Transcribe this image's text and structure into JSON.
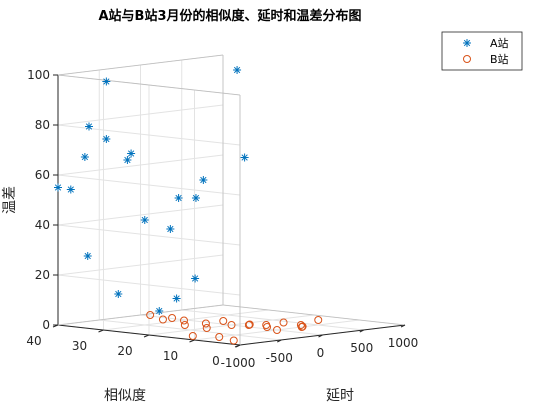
{
  "chart_data": {
    "type": "scatter3d",
    "title": "A站与B站3月份的相似度、延时和温差分布图",
    "xlabel": "延时",
    "ylabel": "相似度",
    "zlabel": "温差",
    "xlim": [
      -1000,
      1000
    ],
    "ylim": [
      0,
      40
    ],
    "zlim": [
      0,
      100
    ],
    "xticks": [
      "-1000",
      "-500",
      "0",
      "500",
      "1000"
    ],
    "yticks": [
      "0",
      "10",
      "20",
      "30",
      "40"
    ],
    "zticks": [
      "0",
      "20",
      "40",
      "60",
      "80",
      "100"
    ],
    "grid": true,
    "legend_position": "top-right",
    "series": [
      {
        "name": "A站",
        "marker": "asterisk",
        "color": "#0072BD",
        "points": [
          {
            "x": -800,
            "y": 33,
            "z": 98
          },
          {
            "x": 950,
            "y": 36,
            "z": 95
          },
          {
            "x": -900,
            "y": 35,
            "z": 80
          },
          {
            "x": -800,
            "y": 33,
            "z": 75
          },
          {
            "x": -950,
            "y": 35,
            "z": 68
          },
          {
            "x": -600,
            "y": 32,
            "z": 66
          },
          {
            "x": -500,
            "y": 33,
            "z": 68
          },
          {
            "x": 600,
            "y": 28,
            "z": 63
          },
          {
            "x": 100,
            "y": 28,
            "z": 56
          },
          {
            "x": -1000,
            "y": 40,
            "z": 55
          },
          {
            "x": -900,
            "y": 39,
            "z": 54
          },
          {
            "x": -200,
            "y": 28,
            "z": 50
          },
          {
            "x": -100,
            "y": 26,
            "z": 50
          },
          {
            "x": -500,
            "y": 30,
            "z": 42
          },
          {
            "x": -300,
            "y": 28,
            "z": 38
          },
          {
            "x": -750,
            "y": 38,
            "z": 27
          },
          {
            "x": 0,
            "y": 28,
            "z": 17
          },
          {
            "x": -500,
            "y": 23,
            "z": 12
          },
          {
            "x": -600,
            "y": 34,
            "z": 12
          },
          {
            "x": -600,
            "y": 25,
            "z": 7
          }
        ]
      },
      {
        "name": "B站",
        "marker": "circle",
        "color": "#D95319",
        "points": [
          {
            "x": -600,
            "y": 27,
            "z": 5
          },
          {
            "x": -500,
            "y": 26,
            "z": 3
          },
          {
            "x": -500,
            "y": 24,
            "z": 4
          },
          {
            "x": -300,
            "y": 25,
            "z": 2
          },
          {
            "x": -400,
            "y": 23,
            "z": 1
          },
          {
            "x": -300,
            "y": 20,
            "z": 0
          },
          {
            "x": -200,
            "y": 22,
            "z": 1
          },
          {
            "x": -100,
            "y": 20,
            "z": 2
          },
          {
            "x": 0,
            "y": 20,
            "z": 0
          },
          {
            "x": 0,
            "y": 16,
            "z": 1
          },
          {
            "x": 100,
            "y": 18,
            "z": 0
          },
          {
            "x": 100,
            "y": 14,
            "z": 0
          },
          {
            "x": 200,
            "y": 16,
            "z": 0
          },
          {
            "x": 300,
            "y": 14,
            "z": 1
          },
          {
            "x": 400,
            "y": 12,
            "z": 0
          },
          {
            "x": 500,
            "y": 10,
            "z": 2
          },
          {
            "x": -800,
            "y": 14,
            "z": 0
          },
          {
            "x": -700,
            "y": 10,
            "z": 0
          },
          {
            "x": -800,
            "y": 5,
            "z": 0
          },
          {
            "x": 0,
            "y": 10,
            "z": 0
          },
          {
            "x": 200,
            "y": 8,
            "z": 1
          },
          {
            "x": 300,
            "y": 10,
            "z": 0
          }
        ]
      }
    ]
  }
}
